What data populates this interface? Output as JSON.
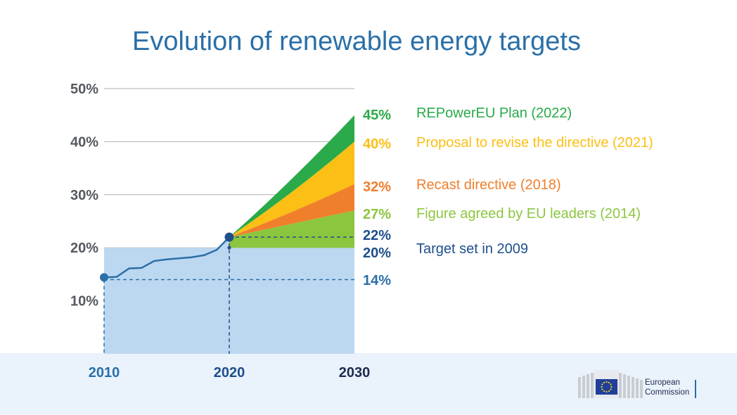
{
  "chart_data": {
    "type": "area",
    "title": "Evolution of renewable energy targets",
    "x_ticks": [
      "2010",
      "2020",
      "2030"
    ],
    "y_ticks": [
      "10%",
      "20%",
      "30%",
      "40%",
      "50%"
    ],
    "ylim": [
      0,
      50
    ],
    "xlim": [
      2010,
      2030
    ],
    "grid": true,
    "history": {
      "x": [
        2010,
        2011,
        2012,
        2013,
        2014,
        2015,
        2016,
        2017,
        2018,
        2019,
        2020
      ],
      "y": [
        14.4,
        14.5,
        16.1,
        16.2,
        17.5,
        17.8,
        18.0,
        18.2,
        18.6,
        19.6,
        22.0
      ]
    },
    "series": [
      {
        "label": "REPowerEU Plan",
        "year": "(2022)",
        "value_label": "45%",
        "target": 45,
        "mid2025": 32.5,
        "color": "#2aaa4a"
      },
      {
        "label": "Proposal to revise the directive",
        "year": "(2021)",
        "value_label": "40%",
        "target": 40,
        "mid2025": 30.0,
        "color": "#fbbf16"
      },
      {
        "label": "Recast directive",
        "year": "(2018)",
        "value_label": "32%",
        "target": 32,
        "mid2025": 26.5,
        "color": "#f07f2c"
      },
      {
        "label": "Figure agreed by EU leaders",
        "year": "(2014)",
        "value_label": "27%",
        "target": 27,
        "mid2025": 24.5,
        "color": "#8cc63f"
      },
      {
        "label": "Target set in 2009",
        "year": "",
        "value_label": "20%",
        "target": 20,
        "color": "#1f4e8c"
      }
    ],
    "reference_lines": [
      {
        "value": 22,
        "label": "22%",
        "color": "#1f4e8c"
      },
      {
        "value": 14,
        "label": "14%",
        "color": "#2a6fa8"
      }
    ],
    "colors": {
      "title": "#2a6fa8",
      "area": "#bcd8f1",
      "line": "#2a6fa8",
      "grid": "#b0b0b0",
      "axis_text": "#555a60",
      "dark_blue": "#1f4e8c"
    }
  },
  "logo": {
    "line1": "European",
    "line2": "Commission"
  }
}
